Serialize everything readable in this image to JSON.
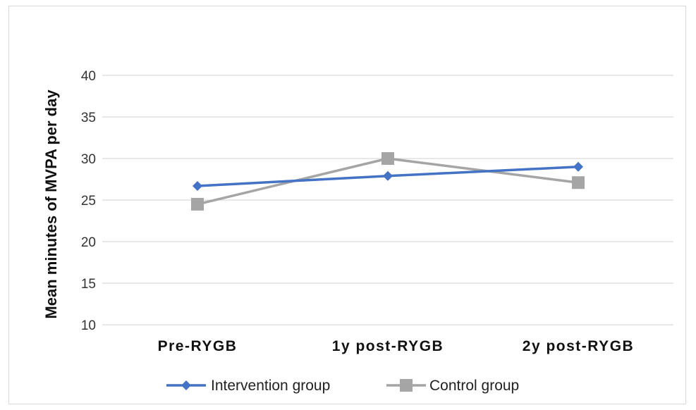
{
  "chart_data": {
    "type": "line",
    "categories": [
      "Pre-RYGB",
      "1y post-RYGB",
      "2y post-RYGB"
    ],
    "series": [
      {
        "name": "Intervention group",
        "values": [
          26.7,
          27.9,
          29.0
        ],
        "color": "#4472c4",
        "marker": "diamond"
      },
      {
        "name": "Control group",
        "values": [
          24.5,
          30.0,
          27.1
        ],
        "color": "#a5a5a5",
        "marker": "square"
      }
    ],
    "title": "",
    "xlabel": "",
    "ylabel": "Mean minutes of MVPA per day",
    "ylim": [
      10,
      40
    ],
    "yticks": [
      10,
      15,
      20,
      25,
      30,
      35,
      40
    ],
    "grid": true,
    "legend_position": "bottom"
  }
}
